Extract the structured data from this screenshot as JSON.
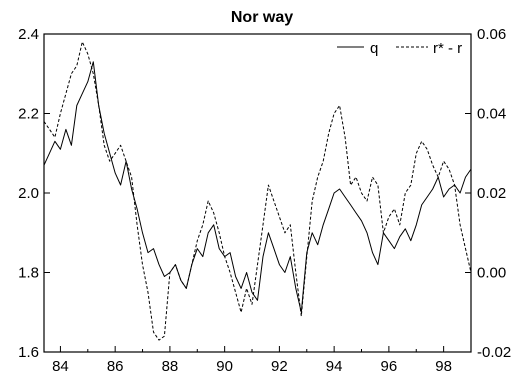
{
  "chart_data": {
    "type": "line",
    "title": "Nor way",
    "x_ticks": [
      "84",
      "86",
      "88",
      "90",
      "92",
      "94",
      "96",
      "98"
    ],
    "x_tick_values": [
      1984,
      1986,
      1988,
      1990,
      1992,
      1994,
      1996,
      1998
    ],
    "xlim": [
      1983.4,
      1999.0
    ],
    "left_axis": {
      "ylim": [
        1.6,
        2.4
      ],
      "ticks": [
        "1.6",
        "1.8",
        "2.0",
        "2.2",
        "2.4"
      ],
      "tick_values": [
        1.6,
        1.8,
        2.0,
        2.2,
        2.4
      ]
    },
    "right_axis": {
      "ylim": [
        -0.02,
        0.06
      ],
      "ticks": [
        "-0.02",
        "0.00",
        "0.02",
        "0.04",
        "0.06"
      ],
      "tick_values": [
        -0.02,
        0.0,
        0.02,
        0.04,
        0.06
      ]
    },
    "legend_position": "top-right",
    "series": [
      {
        "name": "q",
        "axis": "left",
        "style": "solid",
        "x": [
          1983.4,
          1983.6,
          1983.8,
          1984.0,
          1984.2,
          1984.4,
          1984.6,
          1984.8,
          1985.0,
          1985.2,
          1985.4,
          1985.6,
          1985.8,
          1986.0,
          1986.2,
          1986.4,
          1986.6,
          1986.8,
          1987.0,
          1987.2,
          1987.4,
          1987.6,
          1987.8,
          1988.0,
          1988.2,
          1988.4,
          1988.6,
          1988.8,
          1989.0,
          1989.2,
          1989.4,
          1989.6,
          1989.8,
          1990.0,
          1990.2,
          1990.4,
          1990.6,
          1990.8,
          1991.0,
          1991.2,
          1991.4,
          1991.6,
          1991.8,
          1992.0,
          1992.2,
          1992.4,
          1992.6,
          1992.8,
          1993.0,
          1993.2,
          1993.4,
          1993.6,
          1993.8,
          1994.0,
          1994.2,
          1994.4,
          1994.6,
          1994.8,
          1995.0,
          1995.2,
          1995.4,
          1995.6,
          1995.8,
          1996.0,
          1996.2,
          1996.4,
          1996.6,
          1996.8,
          1997.0,
          1997.2,
          1997.4,
          1997.6,
          1997.8,
          1998.0,
          1998.2,
          1998.4,
          1998.6,
          1998.8,
          1999.0
        ],
        "values": [
          2.07,
          2.1,
          2.13,
          2.11,
          2.16,
          2.12,
          2.22,
          2.25,
          2.28,
          2.33,
          2.22,
          2.15,
          2.1,
          2.05,
          2.02,
          2.08,
          2.01,
          1.96,
          1.9,
          1.85,
          1.86,
          1.82,
          1.79,
          1.8,
          1.82,
          1.78,
          1.76,
          1.82,
          1.86,
          1.84,
          1.9,
          1.92,
          1.86,
          1.84,
          1.85,
          1.79,
          1.76,
          1.8,
          1.75,
          1.73,
          1.84,
          1.9,
          1.86,
          1.82,
          1.8,
          1.84,
          1.76,
          1.7,
          1.85,
          1.9,
          1.87,
          1.92,
          1.96,
          2.0,
          2.01,
          1.99,
          1.97,
          1.95,
          1.93,
          1.9,
          1.85,
          1.82,
          1.9,
          1.88,
          1.86,
          1.89,
          1.91,
          1.88,
          1.92,
          1.97,
          1.99,
          2.01,
          2.04,
          1.99,
          2.01,
          2.02,
          2.0,
          2.04,
          2.06
        ]
      },
      {
        "name": "r* - r",
        "axis": "right",
        "style": "dashed",
        "x": [
          1983.4,
          1983.6,
          1983.8,
          1984.0,
          1984.2,
          1984.4,
          1984.6,
          1984.8,
          1985.0,
          1985.2,
          1985.4,
          1985.6,
          1985.8,
          1986.0,
          1986.2,
          1986.4,
          1986.6,
          1986.8,
          1987.0,
          1987.2,
          1987.4,
          1987.6,
          1987.8,
          1988.0,
          1988.2,
          1988.4,
          1988.6,
          1988.8,
          1989.0,
          1989.2,
          1989.4,
          1989.6,
          1989.8,
          1990.0,
          1990.2,
          1990.4,
          1990.6,
          1990.8,
          1991.0,
          1991.2,
          1991.4,
          1991.6,
          1991.8,
          1992.0,
          1992.2,
          1992.4,
          1992.6,
          1992.8,
          1993.0,
          1993.2,
          1993.4,
          1993.6,
          1993.8,
          1994.0,
          1994.2,
          1994.4,
          1994.6,
          1994.8,
          1995.0,
          1995.2,
          1995.4,
          1995.6,
          1995.8,
          1996.0,
          1996.2,
          1996.4,
          1996.6,
          1996.8,
          1997.0,
          1997.2,
          1997.4,
          1997.6,
          1997.8,
          1998.0,
          1998.2,
          1998.4,
          1998.6,
          1998.8,
          1999.0
        ],
        "values": [
          0.038,
          0.036,
          0.034,
          0.04,
          0.045,
          0.05,
          0.052,
          0.058,
          0.055,
          0.05,
          0.042,
          0.032,
          0.028,
          0.03,
          0.032,
          0.028,
          0.024,
          0.012,
          0.002,
          -0.005,
          -0.015,
          -0.017,
          -0.016,
          0.0,
          0.002,
          -0.002,
          -0.004,
          0.002,
          0.008,
          0.012,
          0.018,
          0.015,
          0.01,
          0.004,
          0.0,
          -0.005,
          -0.01,
          -0.004,
          -0.008,
          0.002,
          0.012,
          0.022,
          0.018,
          0.014,
          0.01,
          0.012,
          0.0,
          -0.011,
          0.004,
          0.018,
          0.024,
          0.028,
          0.035,
          0.04,
          0.042,
          0.034,
          0.022,
          0.024,
          0.02,
          0.018,
          0.024,
          0.022,
          0.01,
          0.014,
          0.016,
          0.012,
          0.02,
          0.022,
          0.03,
          0.033,
          0.031,
          0.027,
          0.024,
          0.028,
          0.026,
          0.022,
          0.012,
          0.006,
          0.0
        ]
      }
    ]
  }
}
